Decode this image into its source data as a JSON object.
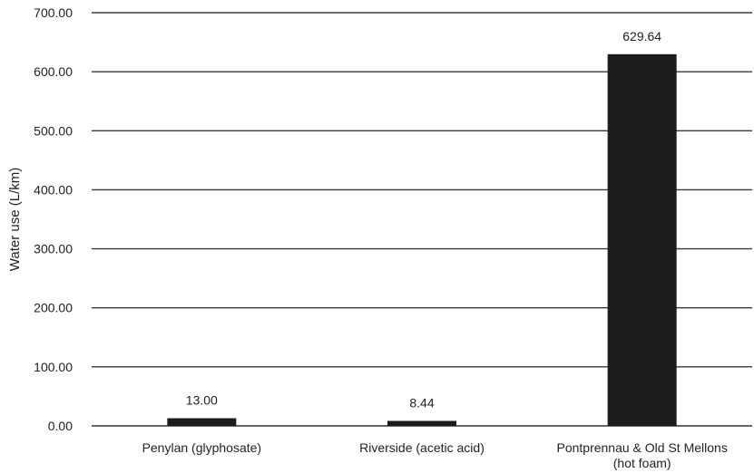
{
  "chart_data": {
    "type": "bar",
    "title": "",
    "xlabel": "",
    "ylabel": "Water use (L/km)",
    "categories": [
      [
        "Penylan (glyphosate)"
      ],
      [
        "Riverside (acetic acid)"
      ],
      [
        "Pontprennau & Old St Mellons",
        "(hot foam)"
      ]
    ],
    "values": [
      13.0,
      8.44,
      629.64
    ],
    "data_labels": [
      "13.00",
      "8.44",
      "629.64"
    ],
    "ylim": [
      0,
      700
    ],
    "yticks": [
      0,
      100,
      200,
      300,
      400,
      500,
      600,
      700
    ],
    "ytick_labels": [
      "0.00",
      "100.00",
      "200.00",
      "300.00",
      "400.00",
      "500.00",
      "600.00",
      "700.00"
    ],
    "grid": true,
    "legend": "none",
    "bar_color": "#1c1c1c",
    "grid_color": "#3a3a3a"
  }
}
